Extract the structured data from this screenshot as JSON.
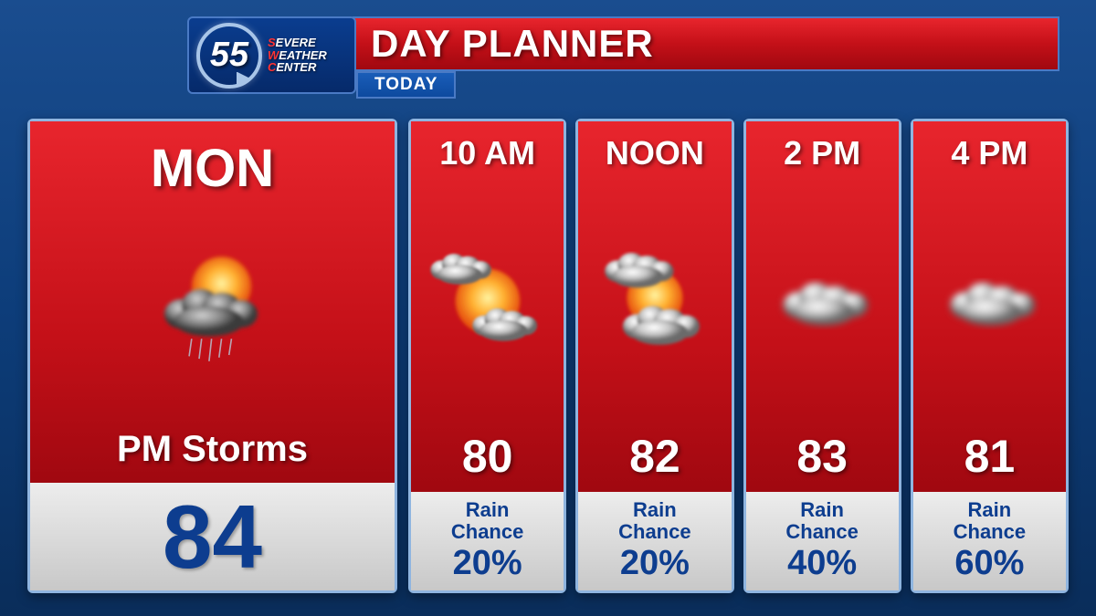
{
  "branding": {
    "station_number": "55",
    "logo_line1_em": "S",
    "logo_line1": "EVERE",
    "logo_line2_em": "W",
    "logo_line2": "EATHER",
    "logo_line3_em": "C",
    "logo_line3": "ENTER",
    "logo_border_color": "#a8c5e8",
    "logo_bg_color": "#0a3d8f"
  },
  "header": {
    "title": "DAY PLANNER",
    "subtitle": "TODAY",
    "title_bg": "#c41018",
    "subtitle_bg": "#0d4a9f"
  },
  "main": {
    "day": "MON",
    "condition": "PM Storms",
    "temp": "84",
    "icon_type": "storm",
    "card_bg": "#c41018",
    "temp_color": "#0d3d8f"
  },
  "hours": [
    {
      "time": "10 AM",
      "temp": "80",
      "rain_pct": "20%",
      "icon_type": "partly"
    },
    {
      "time": "NOON",
      "temp": "82",
      "rain_pct": "20%",
      "icon_type": "mostly"
    },
    {
      "time": "2 PM",
      "temp": "83",
      "rain_pct": "40%",
      "icon_type": "cloudy"
    },
    {
      "time": "4 PM",
      "temp": "81",
      "rain_pct": "60%",
      "icon_type": "cloudy"
    }
  ],
  "rain_label": "Rain\nChance",
  "style": {
    "page_bg_top": "#1a4d8f",
    "page_bg_bottom": "#0a2d5a",
    "card_border": "#8fb5e0",
    "red_gradient_top": "#e8252d",
    "red_gradient_bottom": "#a00810",
    "gray_gradient_top": "#ededed",
    "gray_gradient_bottom": "#c8c8c8",
    "text_white": "#ffffff",
    "text_navy": "#0d3d8f",
    "title_fontsize": 42,
    "day_fontsize": 58,
    "main_temp_fontsize": 98,
    "hour_time_fontsize": 36,
    "hour_temp_fontsize": 50
  }
}
